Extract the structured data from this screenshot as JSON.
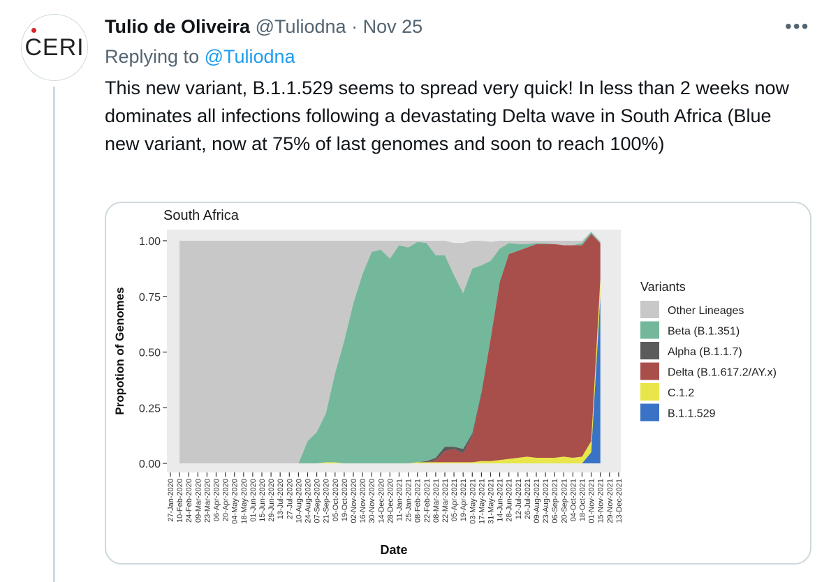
{
  "author": {
    "name": "Tulio de Oliveira",
    "handle": "@Tuliodna",
    "separator": "·",
    "date": "Nov 25",
    "avatar_text": "CERI"
  },
  "more_icon": "more-horizontal-icon",
  "reply": {
    "prefix": "Replying to",
    "handle": "@Tuliodna"
  },
  "tweet": {
    "text": "This new variant, B.1.1.529 seems to spread very quick! In less than 2 weeks now dominates all infections following a devastating Delta wave in South Africa (Blue new variant, now at 75% of last genomes and soon to reach 100%)"
  },
  "colors": {
    "other": "#c8c8c8",
    "beta": "#74b89b",
    "alpha": "#5b5b5b",
    "delta": "#a94f4b",
    "c12": "#e8e64a",
    "b11529": "#3a73c5",
    "panel": "#ebebeb",
    "link": "#1d9bf0"
  },
  "chart_data": {
    "type": "area",
    "title": "South Africa",
    "xlabel": "Date",
    "ylabel": "Propotion of Genomes",
    "ylim": [
      0,
      1
    ],
    "y_ticks": [
      "0.00",
      "0.25",
      "0.50",
      "0.75",
      "1.00"
    ],
    "legend_title": "Variants",
    "legend_position": "right",
    "x_ticks": [
      "27-Jan-2020",
      "10-Feb-2020",
      "24-Feb-2020",
      "09-Mar-2020",
      "23-Mar-2020",
      "06-Apr-2020",
      "20-Apr-2020",
      "04-May-2020",
      "18-May-2020",
      "01-Jun-2020",
      "15-Jun-2020",
      "29-Jun-2020",
      "13-Jul-2020",
      "27-Jul-2020",
      "10-Aug-2020",
      "24-Aug-2020",
      "07-Sep-2020",
      "21-Sep-2020",
      "05-Oct-2020",
      "19-Oct-2020",
      "02-Nov-2020",
      "16-Nov-2020",
      "30-Nov-2020",
      "14-Dec-2020",
      "28-Dec-2020",
      "11-Jan-2021",
      "25-Jan-2021",
      "08-Feb-2021",
      "22-Feb-2021",
      "08-Mar-2021",
      "22-Mar-2021",
      "05-Apr-2021",
      "19-Apr-2021",
      "03-May-2021",
      "17-May-2021",
      "31-May-2021",
      "14-Jun-2021",
      "28-Jun-2021",
      "12-Jul-2021",
      "26-Jul-2021",
      "09-Aug-2021",
      "23-Aug-2021",
      "06-Sep-2021",
      "20-Sep-2021",
      "04-Oct-2021",
      "18-Oct-2021",
      "01-Nov-2021",
      "15-Nov-2021",
      "29-Nov-2021",
      "13-Dec-2021"
    ],
    "x": [
      1,
      2,
      3,
      4,
      5,
      6,
      7,
      8,
      9,
      10,
      11,
      12,
      13,
      14,
      15,
      16,
      17,
      18,
      19,
      20,
      21,
      22,
      23,
      24,
      25,
      26,
      27,
      28,
      29,
      30,
      31,
      32,
      33,
      34,
      35,
      36,
      37,
      38,
      39,
      40,
      41,
      42,
      43,
      44,
      45,
      46,
      47
    ],
    "series": [
      {
        "name": "B.1.1.529",
        "color_key": "b11529",
        "values": [
          0,
          0,
          0,
          0,
          0,
          0,
          0,
          0,
          0,
          0,
          0,
          0,
          0,
          0,
          0,
          0,
          0,
          0,
          0,
          0,
          0,
          0,
          0,
          0,
          0,
          0,
          0,
          0,
          0,
          0,
          0,
          0,
          0,
          0,
          0,
          0,
          0,
          0,
          0,
          0,
          0,
          0,
          0,
          0,
          0,
          0.05,
          0.75
        ]
      },
      {
        "name": "C.1.2",
        "color_key": "c12",
        "values": [
          0,
          0,
          0,
          0,
          0,
          0,
          0,
          0,
          0,
          0,
          0,
          0,
          0,
          0,
          0,
          0,
          0.005,
          0.005,
          0,
          0,
          0,
          0,
          0,
          0,
          0,
          0,
          0.005,
          0.005,
          0.005,
          0.005,
          0.005,
          0.005,
          0.005,
          0.01,
          0.01,
          0.015,
          0.02,
          0.025,
          0.03,
          0.025,
          0.025,
          0.025,
          0.03,
          0.025,
          0.03,
          0.05,
          0.08
        ]
      },
      {
        "name": "Delta (B.1.617.2/AY.x)",
        "color_key": "delta",
        "values": [
          0,
          0,
          0,
          0,
          0,
          0,
          0,
          0,
          0,
          0,
          0,
          0,
          0,
          0,
          0,
          0,
          0,
          0,
          0,
          0,
          0,
          0,
          0,
          0,
          0,
          0,
          0,
          0,
          0.01,
          0.05,
          0.06,
          0.04,
          0.12,
          0.3,
          0.55,
          0.8,
          0.92,
          0.93,
          0.94,
          0.96,
          0.96,
          0.96,
          0.95,
          0.955,
          0.95,
          0.93,
          0.16
        ]
      },
      {
        "name": "Alpha (B.1.1.7)",
        "color_key": "alpha",
        "values": [
          0,
          0,
          0,
          0,
          0,
          0,
          0,
          0,
          0,
          0,
          0,
          0,
          0,
          0,
          0,
          0,
          0,
          0,
          0,
          0,
          0,
          0,
          0,
          0,
          0,
          0,
          0,
          0.005,
          0.01,
          0.02,
          0.01,
          0.02,
          0.01,
          0.01,
          0,
          0,
          0,
          0,
          0,
          0,
          0,
          0,
          0,
          0,
          0,
          0,
          0
        ]
      },
      {
        "name": "Beta (B.1.351)",
        "color_key": "beta",
        "values": [
          0,
          0,
          0,
          0,
          0,
          0,
          0,
          0,
          0,
          0,
          0,
          0,
          0,
          0,
          0.1,
          0.14,
          0.22,
          0.4,
          0.55,
          0.72,
          0.85,
          0.95,
          0.96,
          0.92,
          0.98,
          0.97,
          0.99,
          0.98,
          0.91,
          0.86,
          0.77,
          0.7,
          0.74,
          0.57,
          0.35,
          0.15,
          0.05,
          0.03,
          0.015,
          0.005,
          0.005,
          0,
          0,
          0,
          0.01,
          0.01,
          0
        ]
      },
      {
        "name": "Other Lineages",
        "color_key": "other",
        "values": [
          1,
          1,
          1,
          1,
          1,
          1,
          1,
          1,
          1,
          1,
          1,
          1,
          1,
          1,
          0.9,
          0.86,
          0.775,
          0.595,
          0.45,
          0.28,
          0.15,
          0.05,
          0.04,
          0.08,
          0.02,
          0.03,
          0.005,
          0.01,
          0.065,
          0.065,
          0.145,
          0.225,
          0.125,
          0.11,
          0.085,
          0.035,
          0.01,
          0.015,
          0.015,
          0.01,
          0.01,
          0.015,
          0.02,
          0.02,
          0.01,
          0,
          0.01
        ]
      }
    ],
    "legend_entries": [
      {
        "label": "Other Lineages",
        "color_key": "other"
      },
      {
        "label": "Beta (B.1.351)",
        "color_key": "beta"
      },
      {
        "label": "Alpha (B.1.1.7)",
        "color_key": "alpha"
      },
      {
        "label": "Delta (B.1.617.2/AY.x)",
        "color_key": "delta"
      },
      {
        "label": "C.1.2",
        "color_key": "c12"
      },
      {
        "label": "B.1.1.529",
        "color_key": "b11529"
      }
    ]
  }
}
